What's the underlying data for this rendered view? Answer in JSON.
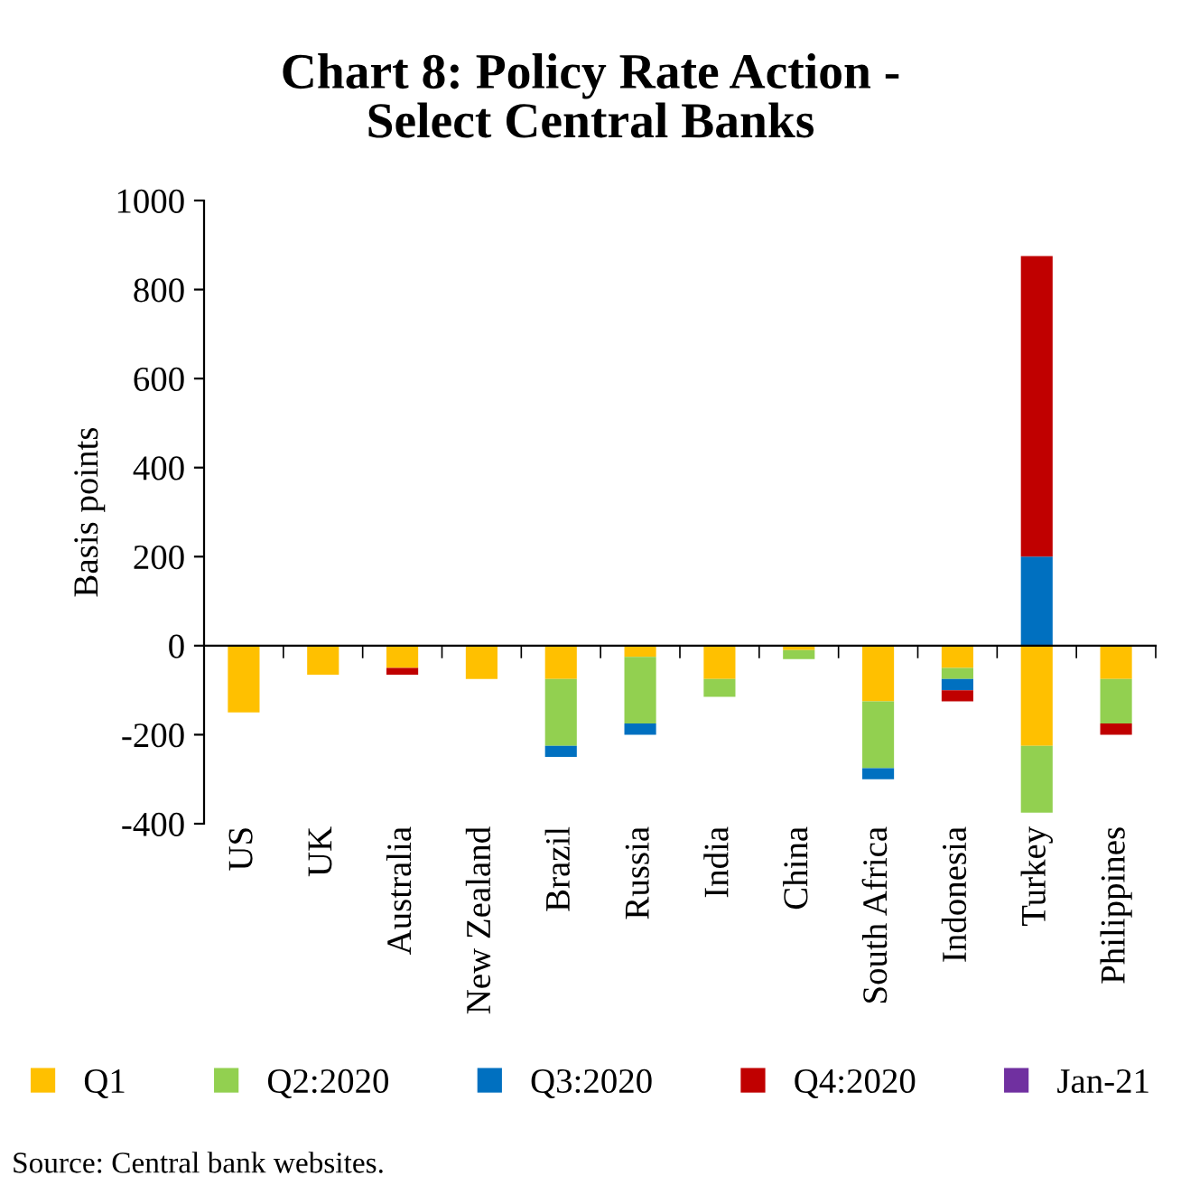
{
  "chart_data": {
    "type": "bar",
    "title": "Chart 8: Policy Rate Action -\nSelect Central Banks",
    "ylabel": "Basis points",
    "categories": [
      "US",
      "UK",
      "Australia",
      "New Zealand",
      "Brazil",
      "Russia",
      "India",
      "China",
      "South Africa",
      "Indonesia",
      "Turkey",
      "Philippines"
    ],
    "series": [
      {
        "name": "Q1",
        "color": "#ffc000",
        "values": [
          -150,
          -65,
          -50,
          -75,
          -75,
          -25,
          -75,
          -10,
          -125,
          -50,
          -225,
          -75
        ]
      },
      {
        "name": "Q2:2020",
        "color": "#92d050",
        "values": [
          null,
          null,
          null,
          null,
          -150,
          -150,
          -40,
          -20,
          -150,
          -25,
          -150,
          -100
        ]
      },
      {
        "name": "Q3:2020",
        "color": "#0070c0",
        "values": [
          null,
          null,
          null,
          null,
          -25,
          -25,
          null,
          null,
          -25,
          -25,
          200,
          null
        ]
      },
      {
        "name": "Q4:2020",
        "color": "#c00000",
        "values": [
          null,
          null,
          -15,
          null,
          null,
          null,
          null,
          null,
          null,
          -25,
          675,
          -25
        ]
      },
      {
        "name": "Jan-21",
        "color": "#7030a0",
        "values": [
          null,
          null,
          null,
          null,
          null,
          null,
          null,
          null,
          null,
          null,
          null,
          null
        ]
      }
    ],
    "stacked": true,
    "ylim": [
      -400,
      1000
    ],
    "yticks": [
      -400,
      -200,
      0,
      200,
      400,
      600,
      800,
      1000
    ],
    "legend": "bottom",
    "annotations": [
      "Source: Central bank websites."
    ]
  }
}
